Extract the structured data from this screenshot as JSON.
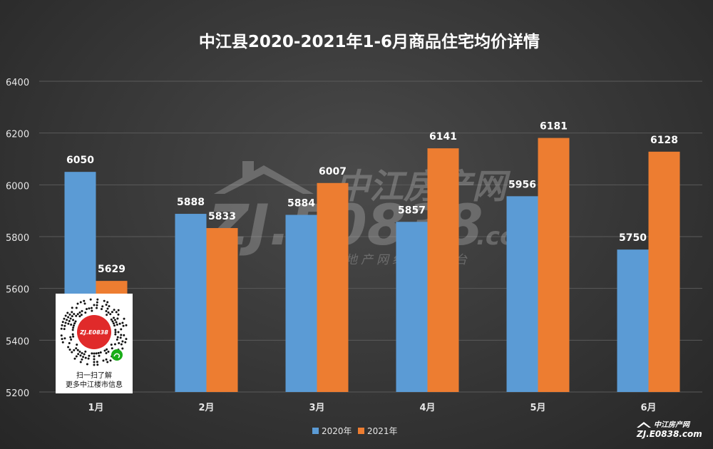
{
  "chart_data": {
    "type": "bar",
    "title": "中江县2020-2021年1-6月商品住宅均价详情",
    "categories": [
      "1月",
      "2月",
      "3月",
      "4月",
      "5月",
      "6月"
    ],
    "series": [
      {
        "name": "2020年",
        "values": [
          6050,
          5888,
          5884,
          5857,
          5956,
          5750
        ]
      },
      {
        "name": "2021年",
        "values": [
          5629,
          5833,
          6007,
          6141,
          6181,
          6128
        ]
      }
    ],
    "ylim": [
      5200,
      6400
    ],
    "yticks": [
      5200,
      5400,
      5600,
      5800,
      6000,
      6200,
      6400
    ],
    "grid": true,
    "legend_position": "bottom-center",
    "xlabel": "",
    "ylabel": ""
  },
  "colors": {
    "series_2020": "#5b9bd5",
    "series_2021": "#ed7d31",
    "text": "#ffffff",
    "axis_text": "#e6e6e6",
    "grid": "#5a5a5a",
    "watermark": "#ffffff"
  },
  "watermark": {
    "chinese_brand": "中江房产网",
    "domain": "ZJ.E0838",
    "tld": ".com",
    "slogan": "中江房地产网络服务平台"
  },
  "qr_overlay": {
    "badge_text": "ZJ.E0838",
    "caption_line1": "扫一扫了解",
    "caption_line2": "更多中江楼市信息"
  },
  "corner_logo": {
    "brand": "中江房产网",
    "domain": "ZJ.E0838.com"
  }
}
